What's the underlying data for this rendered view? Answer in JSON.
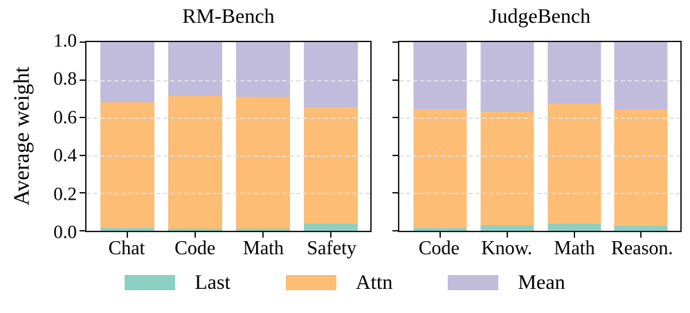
{
  "figure": {
    "ylabel": "Average weight",
    "legend": [
      {
        "label": "Last",
        "color": "#8ecfc4"
      },
      {
        "label": "Attn",
        "color": "#fdbd74"
      },
      {
        "label": "Mean",
        "color": "#c1bcdc"
      }
    ],
    "spine_color": "#1b1b1b",
    "grid_color": "#e0e0e0"
  },
  "chart_data": [
    {
      "type": "bar",
      "stacked": true,
      "title": "RM-Bench",
      "categories": [
        "Chat",
        "Code",
        "Math",
        "Safety"
      ],
      "series": [
        {
          "name": "Last",
          "color": "#8ecfc4",
          "values": [
            0.015,
            0.01,
            0.01,
            0.035
          ]
        },
        {
          "name": "Attn",
          "color": "#fdbd74",
          "values": [
            0.665,
            0.705,
            0.7,
            0.62
          ]
        },
        {
          "name": "Mean",
          "color": "#c1bcdc",
          "values": [
            0.32,
            0.285,
            0.29,
            0.345
          ]
        }
      ],
      "ylabel": "Average weight",
      "ylim": [
        0,
        1
      ],
      "yticks": [
        "0.0",
        "0.2",
        "0.4",
        "0.6",
        "0.8",
        "1.0"
      ],
      "grid": true,
      "legend_position": "bottom"
    },
    {
      "type": "bar",
      "stacked": true,
      "title": "JudgeBench",
      "categories": [
        "Code",
        "Know.",
        "Math",
        "Reason."
      ],
      "series": [
        {
          "name": "Last",
          "color": "#8ecfc4",
          "values": [
            0.015,
            0.03,
            0.035,
            0.025
          ]
        },
        {
          "name": "Attn",
          "color": "#fdbd74",
          "values": [
            0.63,
            0.6,
            0.64,
            0.615
          ]
        },
        {
          "name": "Mean",
          "color": "#c1bcdc",
          "values": [
            0.355,
            0.37,
            0.325,
            0.36
          ]
        }
      ],
      "ylabel": "",
      "ylim": [
        0,
        1
      ],
      "yticks": [
        "0.0",
        "0.2",
        "0.4",
        "0.6",
        "0.8",
        "1.0"
      ],
      "grid": true,
      "legend_position": "bottom"
    }
  ]
}
